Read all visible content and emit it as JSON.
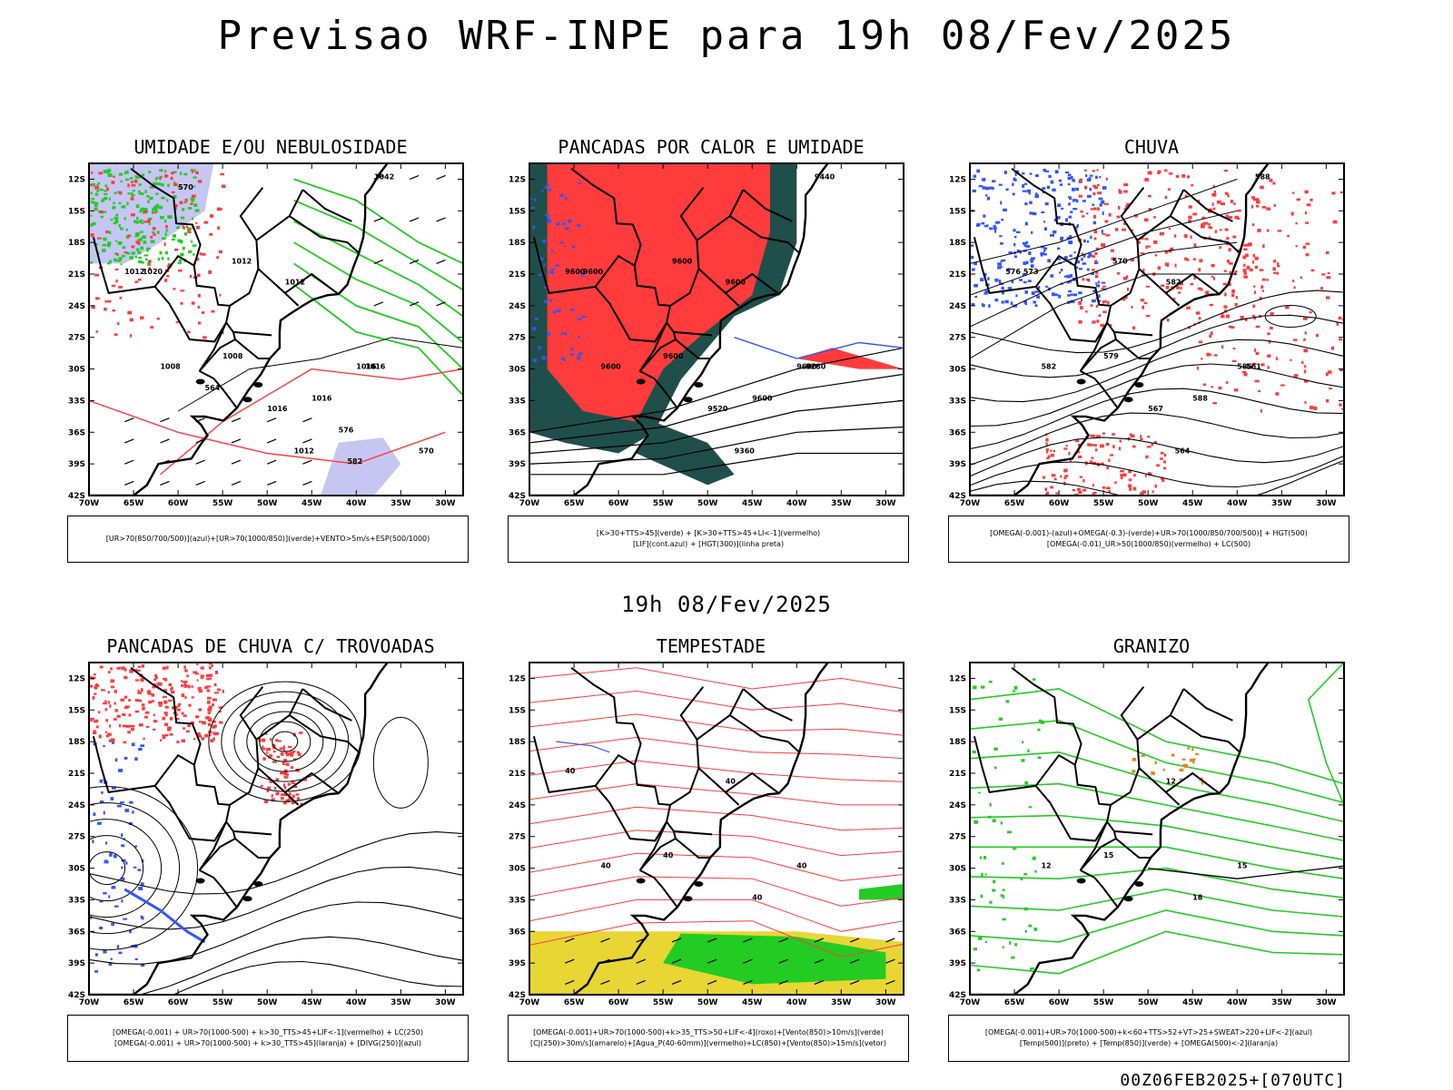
{
  "title": "Previsao WRF-INPE  para 19h 08/Fev/2025",
  "mid_time": "19h 08/Fev/2025",
  "run_id": "00Z06FEB2025+[070UTC]",
  "axes": {
    "lat_labels": [
      "12S",
      "15S",
      "18S",
      "21S",
      "24S",
      "27S",
      "30S",
      "33S",
      "36S",
      "39S",
      "42S"
    ],
    "lon_labels": [
      "70W",
      "65W",
      "60W",
      "55W",
      "50W",
      "45W",
      "40W",
      "35W",
      "30W"
    ]
  },
  "colors": {
    "red": "#ff3b3b",
    "green": "#22cc22",
    "blue": "#3355ff",
    "lavender": "#b8b8f0",
    "darkgreen": "#1f4f4a",
    "yellow": "#e8d634",
    "orange": "#e08a2a"
  },
  "panels": [
    {
      "title": "UMIDADE E/OU NEBULOSIDADE",
      "legend": [
        "[UR>70(850/700/500)](azul)+[UR>70(1000/850)](verde)+VENTO>5m/s+ESP(500/1000)"
      ],
      "labels": [
        "1012",
        "1016",
        "1016",
        "1008",
        "1008",
        "1012",
        "1020",
        "1012",
        "1016",
        "1012",
        "1016",
        "1042",
        "570",
        "564",
        "576",
        "570",
        "582"
      ]
    },
    {
      "title": "PANCADAS POR CALOR E UMIDADE",
      "legend": [
        "[K>30+TTS>45](verde) + [K>30+TTS>45+LI<-1](vermelho)",
        "[LIF](cont.azul) + [HGT(300)](linha preta)"
      ],
      "labels": [
        "9600",
        "9600",
        "9600",
        "9600",
        "9600",
        "9600",
        "9600",
        "9600",
        "9520",
        "9360",
        "9280",
        "9440"
      ]
    },
    {
      "title": "CHUVA",
      "legend": [
        "[OMEGA(-0.001)-(azul)+OMEGA(-0.3)-(verde)+UR>70(1000/850/700/500)] + HGT(500)",
        "[OMEGA(-0.01)_UR>50(1000/850)(vermelho) + LC(500)"
      ],
      "labels": [
        "582",
        "585",
        "588",
        "582",
        "579",
        "576",
        "573",
        "570",
        "567",
        "564",
        "561",
        "588"
      ]
    },
    {
      "title": "PANCADAS DE CHUVA C/ TROVOADAS",
      "legend": [
        "[OMEGA(-0.001) + UR>70(1000-500) + k>30_TTS>45+LIF<-1](vermelho) + LC(250)",
        "[OMEGA(-0.001) + UR>70(1000-500) + k>30_TTS>45](laranja) + [DIVG(250)](azul)"
      ],
      "labels": []
    },
    {
      "title": "TEMPESTADE",
      "legend": [
        "[OMEGA(-0.001)+UR>70(1000-500)+k>35_TTS>50+LIF<-4](roxo)+[Vento(850)>10m/s](verde)",
        "[CJ(250)>30m/s](amarelo)+[Agua_P(40-60mm)](vermelho)+LC(850)+[Vento(850)>15m/s](vetor)"
      ],
      "labels": [
        "40",
        "40",
        "40",
        "40",
        "40",
        "40"
      ]
    },
    {
      "title": "GRANIZO",
      "legend": [
        "[OMEGA(-0.001)+UR>70(1000-500)+k<60+TTS>52+VT>25+SWEAT>220+LIF<-2](azul)",
        "[Temp(500)](preto) + [Temp(850)](verde) + [OMEGA(500)<-2](laranja)"
      ],
      "labels": [
        "12",
        "15",
        "18",
        "12",
        "15"
      ]
    }
  ]
}
